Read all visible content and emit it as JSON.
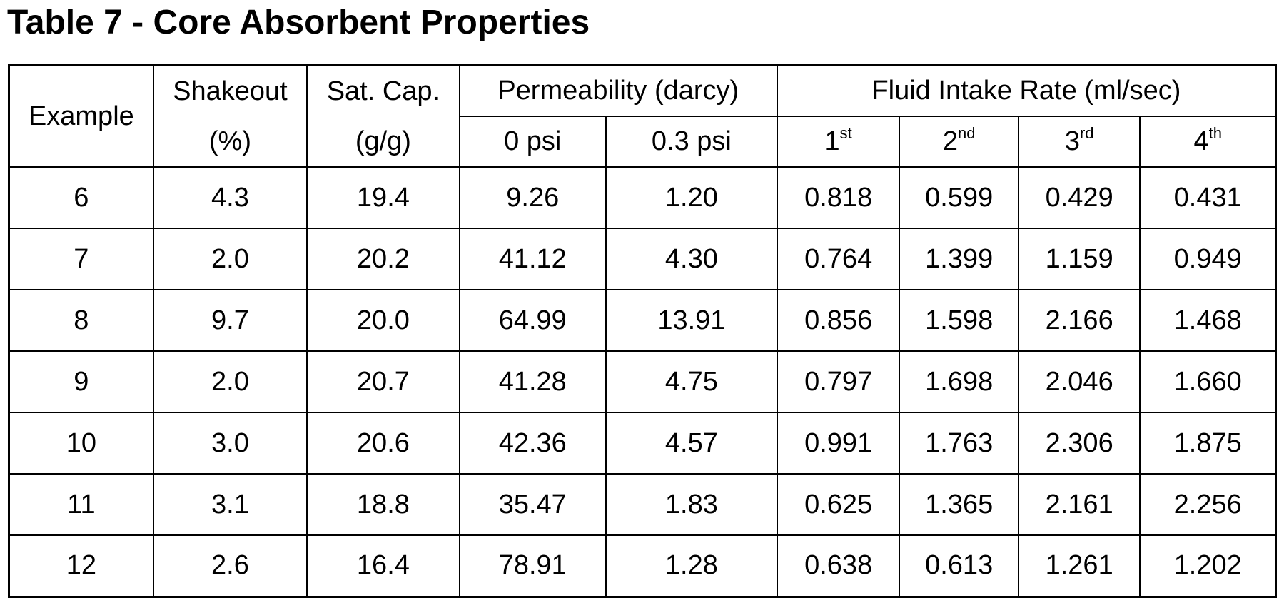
{
  "title": "Table 7 - Core Absorbent Properties",
  "table": {
    "headers": {
      "example": "Example",
      "shakeout_line1": "Shakeout",
      "shakeout_line2": "(%)",
      "satcap_line1": "Sat. Cap.",
      "satcap_line2": "(g/g)",
      "permeability": "Permeability (darcy)",
      "perm_sub": [
        "0 psi",
        "0.3 psi"
      ],
      "fluid_intake": "Fluid Intake Rate (ml/sec)",
      "intake_sub": [
        {
          "num": "1",
          "sup": "st"
        },
        {
          "num": "2",
          "sup": "nd"
        },
        {
          "num": "3",
          "sup": "rd"
        },
        {
          "num": "4",
          "sup": "th"
        }
      ]
    },
    "rows": [
      [
        "6",
        "4.3",
        "19.4",
        "9.26",
        "1.20",
        "0.818",
        "0.599",
        "0.429",
        "0.431"
      ],
      [
        "7",
        "2.0",
        "20.2",
        "41.12",
        "4.30",
        "0.764",
        "1.399",
        "1.159",
        "0.949"
      ],
      [
        "8",
        "9.7",
        "20.0",
        "64.99",
        "13.91",
        "0.856",
        "1.598",
        "2.166",
        "1.468"
      ],
      [
        "9",
        "2.0",
        "20.7",
        "41.28",
        "4.75",
        "0.797",
        "1.698",
        "2.046",
        "1.660"
      ],
      [
        "10",
        "3.0",
        "20.6",
        "42.36",
        "4.57",
        "0.991",
        "1.763",
        "2.306",
        "1.875"
      ],
      [
        "11",
        "3.1",
        "18.8",
        "35.47",
        "1.83",
        "0.625",
        "1.365",
        "2.161",
        "2.256"
      ],
      [
        "12",
        "2.6",
        "16.4",
        "78.91",
        "1.28",
        "0.638",
        "0.613",
        "1.261",
        "1.202"
      ]
    ]
  }
}
